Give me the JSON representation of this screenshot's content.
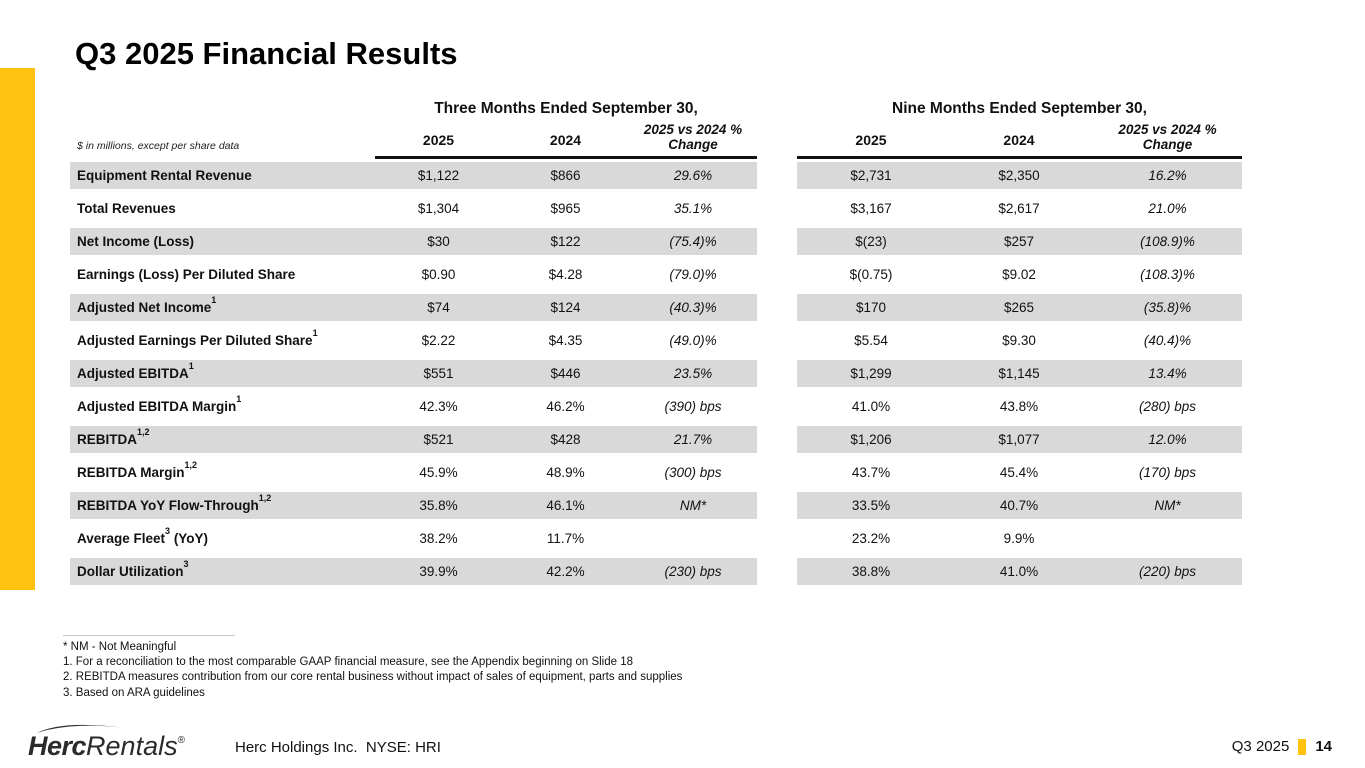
{
  "slide": {
    "title": "Q3 2025 Financial Results",
    "accent_color": "#FFC20E",
    "stripe_color": "#D9D9D9"
  },
  "table": {
    "note": "$ in millions, except per share data",
    "groups": [
      {
        "title": "Three Months Ended September 30,",
        "col_2025": "2025",
        "col_2024": "2024",
        "col_change_line1": "2025 vs 2024 %",
        "col_change_line2": "Change"
      },
      {
        "title": "Nine Months Ended September 30,",
        "col_2025": "2025",
        "col_2024": "2024",
        "col_change_line1": "2025 vs 2024 %",
        "col_change_line2": "Change"
      }
    ],
    "rows": [
      {
        "label": "Equipment Rental Revenue",
        "sup": "",
        "suffix": "",
        "values": [
          "$1,122",
          "$866",
          "29.6%",
          "$2,731",
          "$2,350",
          "16.2%"
        ]
      },
      {
        "label": "Total Revenues",
        "sup": "",
        "suffix": "",
        "values": [
          "$1,304",
          "$965",
          "35.1%",
          "$3,167",
          "$2,617",
          "21.0%"
        ]
      },
      {
        "label": "Net Income (Loss)",
        "sup": "",
        "suffix": "",
        "values": [
          "$30",
          "$122",
          "(75.4)%",
          "$(23)",
          "$257",
          "(108.9)%"
        ]
      },
      {
        "label": "Earnings (Loss) Per Diluted Share",
        "sup": "",
        "suffix": "",
        "values": [
          "$0.90",
          "$4.28",
          "(79.0)%",
          "$(0.75)",
          "$9.02",
          "(108.3)%"
        ]
      },
      {
        "label": "Adjusted Net Income",
        "sup": "1",
        "suffix": "",
        "values": [
          "$74",
          "$124",
          "(40.3)%",
          "$170",
          "$265",
          "(35.8)%"
        ]
      },
      {
        "label": "Adjusted Earnings Per Diluted Share",
        "sup": "1",
        "suffix": "",
        "values": [
          "$2.22",
          "$4.35",
          "(49.0)%",
          "$5.54",
          "$9.30",
          "(40.4)%"
        ]
      },
      {
        "label": "Adjusted EBITDA",
        "sup": "1",
        "suffix": "",
        "values": [
          "$551",
          "$446",
          "23.5%",
          "$1,299",
          "$1,145",
          "13.4%"
        ]
      },
      {
        "label": "Adjusted EBITDA Margin",
        "sup": "1",
        "suffix": "",
        "values": [
          "42.3%",
          "46.2%",
          "(390) bps",
          "41.0%",
          "43.8%",
          "(280) bps"
        ]
      },
      {
        "label": "REBITDA",
        "sup": "1,2",
        "suffix": "",
        "values": [
          "$521",
          "$428",
          "21.7%",
          "$1,206",
          "$1,077",
          "12.0%"
        ]
      },
      {
        "label": "REBITDA Margin",
        "sup": "1,2",
        "suffix": "",
        "values": [
          "45.9%",
          "48.9%",
          "(300) bps",
          "43.7%",
          "45.4%",
          "(170) bps"
        ]
      },
      {
        "label": "REBITDA YoY Flow-Through",
        "sup": "1,2",
        "suffix": "",
        "values": [
          "35.8%",
          "46.1%",
          "NM*",
          "33.5%",
          "40.7%",
          "NM*"
        ]
      },
      {
        "label": "Average Fleet",
        "sup": "3",
        "suffix": " (YoY)",
        "values": [
          "38.2%",
          "11.7%",
          "",
          "23.2%",
          "9.9%",
          ""
        ]
      },
      {
        "label": "Dollar Utilization",
        "sup": "3",
        "suffix": "",
        "values": [
          "39.9%",
          "42.2%",
          "(230) bps",
          "38.8%",
          "41.0%",
          "(220) bps"
        ]
      }
    ]
  },
  "footnotes": [
    "* NM - Not Meaningful",
    "1. For a reconciliation to the most comparable GAAP financial measure, see the Appendix beginning on Slide 18",
    "2. REBITDA measures contribution from our core rental business without impact of sales of equipment, parts and supplies",
    "3. Based on ARA guidelines"
  ],
  "footer": {
    "logo": {
      "herc": "Herc",
      "rentals": "Rentals",
      "reg": "®"
    },
    "company": "Herc Holdings Inc.  NYSE: HRI",
    "quarter": "Q3 2025",
    "page": "14"
  }
}
